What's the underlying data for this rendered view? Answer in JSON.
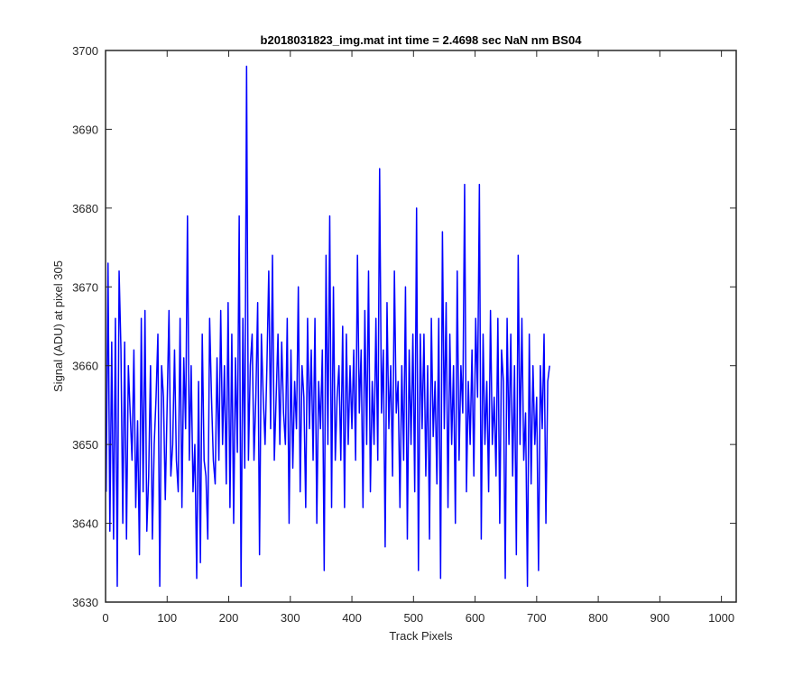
{
  "chart_data": {
    "type": "line",
    "title": "b2018031823_img.mat int time = 2.4698 sec  NaN nm BS04",
    "xlabel": "Track Pixels",
    "ylabel": "Signal (ADU) at pixel 305",
    "xlim": [
      0,
      1024
    ],
    "ylim": [
      3630,
      3700
    ],
    "xticks": [
      0,
      100,
      200,
      300,
      400,
      500,
      600,
      700,
      800,
      900,
      1000
    ],
    "xtick_labels": [
      "0",
      "100",
      "200",
      "300",
      "400",
      "500",
      "600",
      "700",
      "800",
      "900",
      "1000"
    ],
    "yticks": [
      3630,
      3640,
      3650,
      3660,
      3670,
      3680,
      3690,
      3700
    ],
    "ytick_labels": [
      "3630",
      "3640",
      "3650",
      "3660",
      "3670",
      "3680",
      "3690",
      "3700"
    ],
    "grid": false,
    "line_color": "#0000ff",
    "series": [
      {
        "x_start": 1,
        "x_step": 3,
        "values": [
          3644,
          3673,
          3639,
          3663,
          3638,
          3666,
          3632,
          3672,
          3662,
          3640,
          3663,
          3638,
          3660,
          3654,
          3648,
          3662,
          3642,
          3653,
          3636,
          3666,
          3644,
          3667,
          3639,
          3646,
          3660,
          3638,
          3650,
          3656,
          3664,
          3632,
          3660,
          3656,
          3643,
          3655,
          3667,
          3646,
          3650,
          3662,
          3648,
          3644,
          3666,
          3642,
          3661,
          3652,
          3679,
          3648,
          3660,
          3644,
          3650,
          3633,
          3658,
          3635,
          3664,
          3648,
          3646,
          3638,
          3666,
          3656,
          3648,
          3645,
          3661,
          3648,
          3667,
          3650,
          3660,
          3645,
          3668,
          3642,
          3664,
          3640,
          3661,
          3649,
          3679,
          3632,
          3666,
          3647,
          3698,
          3648,
          3660,
          3664,
          3648,
          3656,
          3668,
          3636,
          3664,
          3656,
          3650,
          3660,
          3672,
          3652,
          3674,
          3648,
          3656,
          3664,
          3650,
          3663,
          3654,
          3650,
          3666,
          3640,
          3662,
          3647,
          3658,
          3652,
          3670,
          3644,
          3660,
          3656,
          3642,
          3666,
          3652,
          3662,
          3648,
          3666,
          3640,
          3658,
          3652,
          3662,
          3634,
          3674,
          3650,
          3679,
          3642,
          3670,
          3648,
          3656,
          3660,
          3648,
          3665,
          3642,
          3664,
          3650,
          3660,
          3652,
          3662,
          3648,
          3674,
          3654,
          3662,
          3642,
          3667,
          3650,
          3672,
          3644,
          3658,
          3650,
          3666,
          3648,
          3685,
          3654,
          3662,
          3637,
          3668,
          3652,
          3660,
          3646,
          3672,
          3654,
          3658,
          3642,
          3660,
          3648,
          3670,
          3638,
          3662,
          3650,
          3664,
          3644,
          3680,
          3634,
          3664,
          3652,
          3664,
          3646,
          3660,
          3638,
          3666,
          3651,
          3658,
          3645,
          3666,
          3633,
          3677,
          3652,
          3668,
          3642,
          3664,
          3650,
          3660,
          3640,
          3672,
          3648,
          3660,
          3654,
          3683,
          3644,
          3658,
          3650,
          3662,
          3646,
          3666,
          3656,
          3683,
          3638,
          3664,
          3650,
          3658,
          3644,
          3667,
          3650,
          3656,
          3646,
          3666,
          3640,
          3662,
          3658,
          3633,
          3666,
          3650,
          3664,
          3646,
          3660,
          3636,
          3674,
          3650,
          3666,
          3648,
          3654,
          3632,
          3664,
          3645,
          3660,
          3650,
          3656,
          3634,
          3660,
          3652,
          3664,
          3640,
          3658,
          3660
        ]
      }
    ]
  }
}
